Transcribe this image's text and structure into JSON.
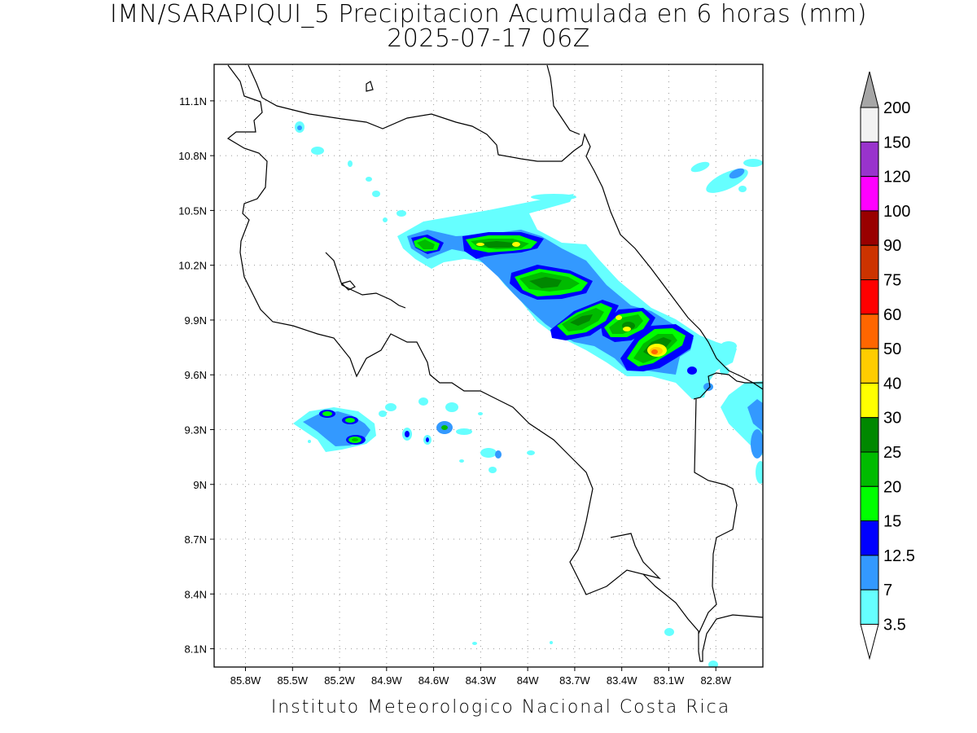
{
  "title": "IMN/SARAPIQUI_5 Precipitacion Acumulada en 6 horas (mm)",
  "subtitle": "2025-07-17 06Z",
  "footer": "Instituto Meteorologico Nacional Costa Rica",
  "map": {
    "lon_range": [
      -86.0,
      -82.5
    ],
    "lat_range": [
      8.0,
      11.3
    ],
    "lon_ticks": [
      "85.8W",
      "85.5W",
      "85.2W",
      "84.9W",
      "84.6W",
      "84.3W",
      "84W",
      "83.7W",
      "83.4W",
      "83.1W",
      "82.8W"
    ],
    "lon_values": [
      -85.8,
      -85.5,
      -85.2,
      -84.9,
      -84.6,
      -84.3,
      -84.0,
      -83.7,
      -83.4,
      -83.1,
      -82.8
    ],
    "lat_ticks": [
      "11.1N",
      "10.8N",
      "10.5N",
      "10.2N",
      "9.9N",
      "9.6N",
      "9.3N",
      "9N",
      "8.7N",
      "8.4N",
      "8.1N"
    ],
    "lat_values": [
      11.1,
      10.8,
      10.5,
      10.2,
      9.9,
      9.6,
      9.3,
      9.0,
      8.7,
      8.4,
      8.1
    ],
    "grid": "dotted"
  },
  "colorbar": {
    "labels": [
      "200",
      "150",
      "120",
      "100",
      "90",
      "75",
      "60",
      "50",
      "40",
      "30",
      "25",
      "20",
      "15",
      "12.5",
      "7",
      "3.5"
    ],
    "colors": [
      "#a6a6a6",
      "#f2f2f2",
      "#9933cc",
      "#ff00ff",
      "#990000",
      "#cc3300",
      "#ff0000",
      "#ff6600",
      "#ffcc00",
      "#ffff00",
      "#008800",
      "#00bb00",
      "#00ff00",
      "#0000ff",
      "#3399ff",
      "#66ffff",
      "#ffffff"
    ]
  }
}
